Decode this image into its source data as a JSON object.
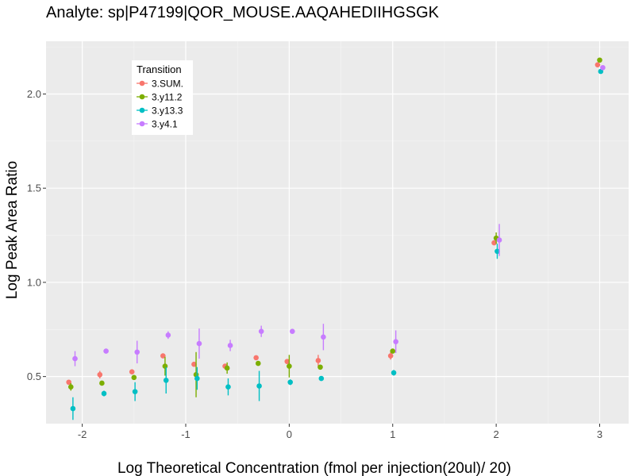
{
  "chart_data": {
    "type": "scatter",
    "title": "Analyte: sp|P47199|QOR_MOUSE.AAQAHEDIIHGSGK",
    "xlabel": "Log Theoretical Concentration (fmol per injection(20ul)/ 20)",
    "ylabel": "Log Peak Area Ratio",
    "xlim": [
      -2.35,
      3.28
    ],
    "ylim": [
      0.25,
      2.28
    ],
    "x_ticks": [
      -2,
      -1,
      0,
      1,
      2,
      3
    ],
    "y_ticks": [
      0.5,
      1.0,
      1.5,
      2.0
    ],
    "x_tick_labels": [
      "-2",
      "-1",
      "0",
      "1",
      "2",
      "3"
    ],
    "y_tick_labels": [
      "0.5",
      "1.0",
      "1.5",
      "2.0"
    ],
    "grid": true,
    "legend": {
      "title": "Transition",
      "placement": "top-left"
    },
    "series": [
      {
        "name": "3.SUM.",
        "color": "#F8766D",
        "points": [
          {
            "x": -2.13,
            "y": 0.47,
            "err": 0.0
          },
          {
            "x": -1.83,
            "y": 0.51,
            "err": 0.02
          },
          {
            "x": -1.52,
            "y": 0.525,
            "err": 0.0
          },
          {
            "x": -1.22,
            "y": 0.61,
            "err": 0.0
          },
          {
            "x": -0.92,
            "y": 0.565,
            "err": 0.0
          },
          {
            "x": -0.62,
            "y": 0.555,
            "err": 0.0
          },
          {
            "x": -0.32,
            "y": 0.6,
            "err": 0.0
          },
          {
            "x": -0.02,
            "y": 0.58,
            "err": 0.0
          },
          {
            "x": 0.28,
            "y": 0.585,
            "err": 0.03
          },
          {
            "x": 0.98,
            "y": 0.61,
            "err": 0.02
          },
          {
            "x": 1.98,
            "y": 1.21,
            "err": 0.0
          },
          {
            "x": 2.98,
            "y": 2.155,
            "err": 0.0
          }
        ]
      },
      {
        "name": "3.y11.2",
        "color": "#7CAE00",
        "points": [
          {
            "x": -2.11,
            "y": 0.445,
            "err": 0.02
          },
          {
            "x": -1.81,
            "y": 0.465,
            "err": 0.0
          },
          {
            "x": -1.5,
            "y": 0.495,
            "err": 0.0
          },
          {
            "x": -1.2,
            "y": 0.555,
            "err": 0.05
          },
          {
            "x": -0.9,
            "y": 0.51,
            "err": 0.12
          },
          {
            "x": -0.6,
            "y": 0.545,
            "err": 0.03
          },
          {
            "x": -0.3,
            "y": 0.57,
            "err": 0.0
          },
          {
            "x": 0.0,
            "y": 0.555,
            "err": 0.06
          },
          {
            "x": 0.3,
            "y": 0.55,
            "err": 0.0
          },
          {
            "x": 1.0,
            "y": 0.635,
            "err": 0.0
          },
          {
            "x": 2.0,
            "y": 1.235,
            "err": 0.03
          },
          {
            "x": 3.0,
            "y": 2.18,
            "err": 0.0
          }
        ]
      },
      {
        "name": "3.y13.3",
        "color": "#00BFC4",
        "points": [
          {
            "x": -2.09,
            "y": 0.33,
            "err": 0.06
          },
          {
            "x": -1.79,
            "y": 0.41,
            "err": 0.015
          },
          {
            "x": -1.49,
            "y": 0.42,
            "err": 0.05
          },
          {
            "x": -1.19,
            "y": 0.48,
            "err": 0.07
          },
          {
            "x": -0.89,
            "y": 0.49,
            "err": 0.06
          },
          {
            "x": -0.59,
            "y": 0.445,
            "err": 0.045
          },
          {
            "x": -0.29,
            "y": 0.45,
            "err": 0.08
          },
          {
            "x": 0.01,
            "y": 0.47,
            "err": 0.015
          },
          {
            "x": 0.31,
            "y": 0.49,
            "err": 0.0
          },
          {
            "x": 1.01,
            "y": 0.52,
            "err": 0.015
          },
          {
            "x": 2.01,
            "y": 1.165,
            "err": 0.04
          },
          {
            "x": 3.01,
            "y": 2.12,
            "err": 0.0
          }
        ]
      },
      {
        "name": "3.y4.1",
        "color": "#C77CFF",
        "points": [
          {
            "x": -2.07,
            "y": 0.595,
            "err": 0.04
          },
          {
            "x": -1.77,
            "y": 0.635,
            "err": 0.0
          },
          {
            "x": -1.47,
            "y": 0.63,
            "err": 0.06
          },
          {
            "x": -1.17,
            "y": 0.72,
            "err": 0.02
          },
          {
            "x": -0.87,
            "y": 0.675,
            "err": 0.08
          },
          {
            "x": -0.57,
            "y": 0.665,
            "err": 0.03
          },
          {
            "x": -0.27,
            "y": 0.74,
            "err": 0.03
          },
          {
            "x": 0.03,
            "y": 0.74,
            "err": 0.0
          },
          {
            "x": 0.33,
            "y": 0.71,
            "err": 0.07
          },
          {
            "x": 1.03,
            "y": 0.685,
            "err": 0.06
          },
          {
            "x": 2.03,
            "y": 1.225,
            "err": 0.085
          },
          {
            "x": 3.03,
            "y": 2.14,
            "err": 0.0
          }
        ]
      }
    ]
  }
}
